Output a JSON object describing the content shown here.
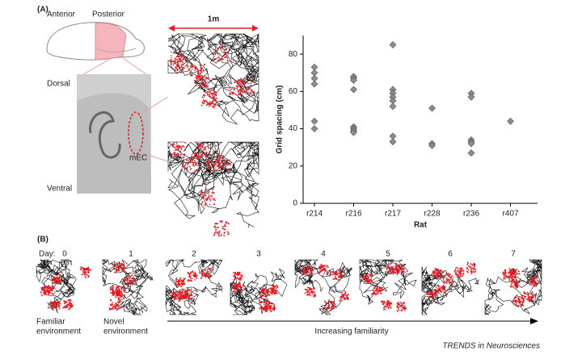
{
  "panel_a": {
    "label": "(A)",
    "anterior": "Anterior",
    "posterior": "Posterior",
    "dorsal": "Dorsal",
    "ventral": "Ventral",
    "region": "mEC",
    "scale": "1m"
  },
  "chart_data": {
    "type": "scatter",
    "categories": [
      "r214",
      "r216",
      "r217",
      "r228",
      "r236",
      "r407"
    ],
    "values": [
      [
        73,
        70,
        67,
        64,
        44,
        40
      ],
      [
        68,
        67,
        66,
        61,
        41,
        40,
        39,
        38
      ],
      [
        85,
        61,
        59,
        57,
        55,
        52,
        36,
        33
      ],
      [
        51,
        32,
        31
      ],
      [
        59,
        57,
        34,
        33,
        32,
        27
      ],
      [
        44
      ]
    ],
    "color": "#8c8c8c",
    "x_label": "Rat",
    "y_label": "Grid spacing (cm)",
    "ylim": [
      0,
      90
    ],
    "yticks": [
      0,
      20,
      40,
      60,
      80
    ]
  },
  "panel_b": {
    "label": "(B)",
    "day_label": "Day:",
    "days": [
      "0",
      "1",
      "2",
      "3",
      "4",
      "5",
      "6",
      "7"
    ],
    "familiar": [
      "Familiar",
      "environment"
    ],
    "novel": [
      "Novel",
      "environment"
    ],
    "arrow_label": "Increasing familiarity"
  },
  "credit": "TRENDS in Neurosciences"
}
